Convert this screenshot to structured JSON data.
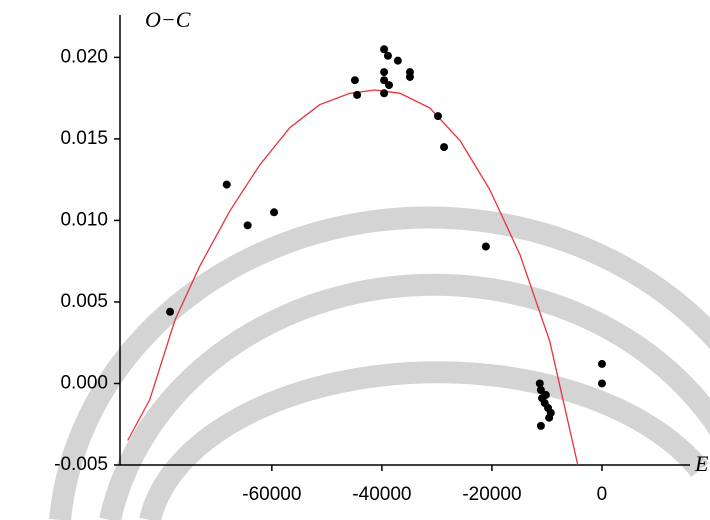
{
  "chart_data": {
    "type": "scatter",
    "x_label": "E",
    "y_label": "O−C",
    "xlim": [
      -87600,
      16000
    ],
    "ylim": [
      -0.005,
      0.0226
    ],
    "xticks": [
      -60000,
      -40000,
      -20000,
      0
    ],
    "yticks": [
      -0.005,
      {
        "value": 0,
        "label": "0.000"
      },
      0.005,
      {
        "value": 0.01,
        "label": "0.010"
      },
      0.015,
      {
        "value": 0.02,
        "label": "0.020"
      }
    ],
    "points": {
      "color": "#000000",
      "x": [
        -78500,
        -68200,
        -64400,
        -59600,
        -44900,
        -44500,
        -39600,
        -38900,
        -39600,
        -39600,
        -38700,
        -39600,
        -37100,
        -34900,
        -34900,
        -29800,
        -28700,
        -21100,
        -11300,
        -11100,
        -10900,
        -10400,
        -10200,
        -9800,
        -9600,
        -9300,
        -11100,
        0,
        0
      ],
      "y": [
        0.0044,
        0.0122,
        0.0097,
        0.0105,
        0.0186,
        0.0177,
        0.0205,
        0.0201,
        0.0191,
        0.0186,
        0.0183,
        0.0178,
        0.0198,
        0.0191,
        0.0188,
        0.0164,
        0.0145,
        0.0084,
        0.0,
        -0.0004,
        -0.0009,
        -0.0012,
        -0.0007,
        -0.0015,
        -0.0021,
        -0.0018,
        -0.0026,
        0.0012,
        0.0
      ]
    },
    "fit": {
      "color": "#e8323c",
      "x": [
        -86200,
        -82200,
        -77600,
        -73100,
        -67600,
        -62200,
        -56700,
        -51300,
        -45800,
        -41300,
        -36700,
        -31300,
        -25800,
        -20400,
        -14900,
        -9500,
        -4400
      ],
      "y": [
        -0.0035,
        -0.001,
        0.0039,
        0.0072,
        0.0106,
        0.0134,
        0.0157,
        0.0171,
        0.0178,
        0.018,
        0.0178,
        0.0169,
        0.0149,
        0.0119,
        0.0079,
        0.0026,
        -0.005
      ]
    }
  }
}
